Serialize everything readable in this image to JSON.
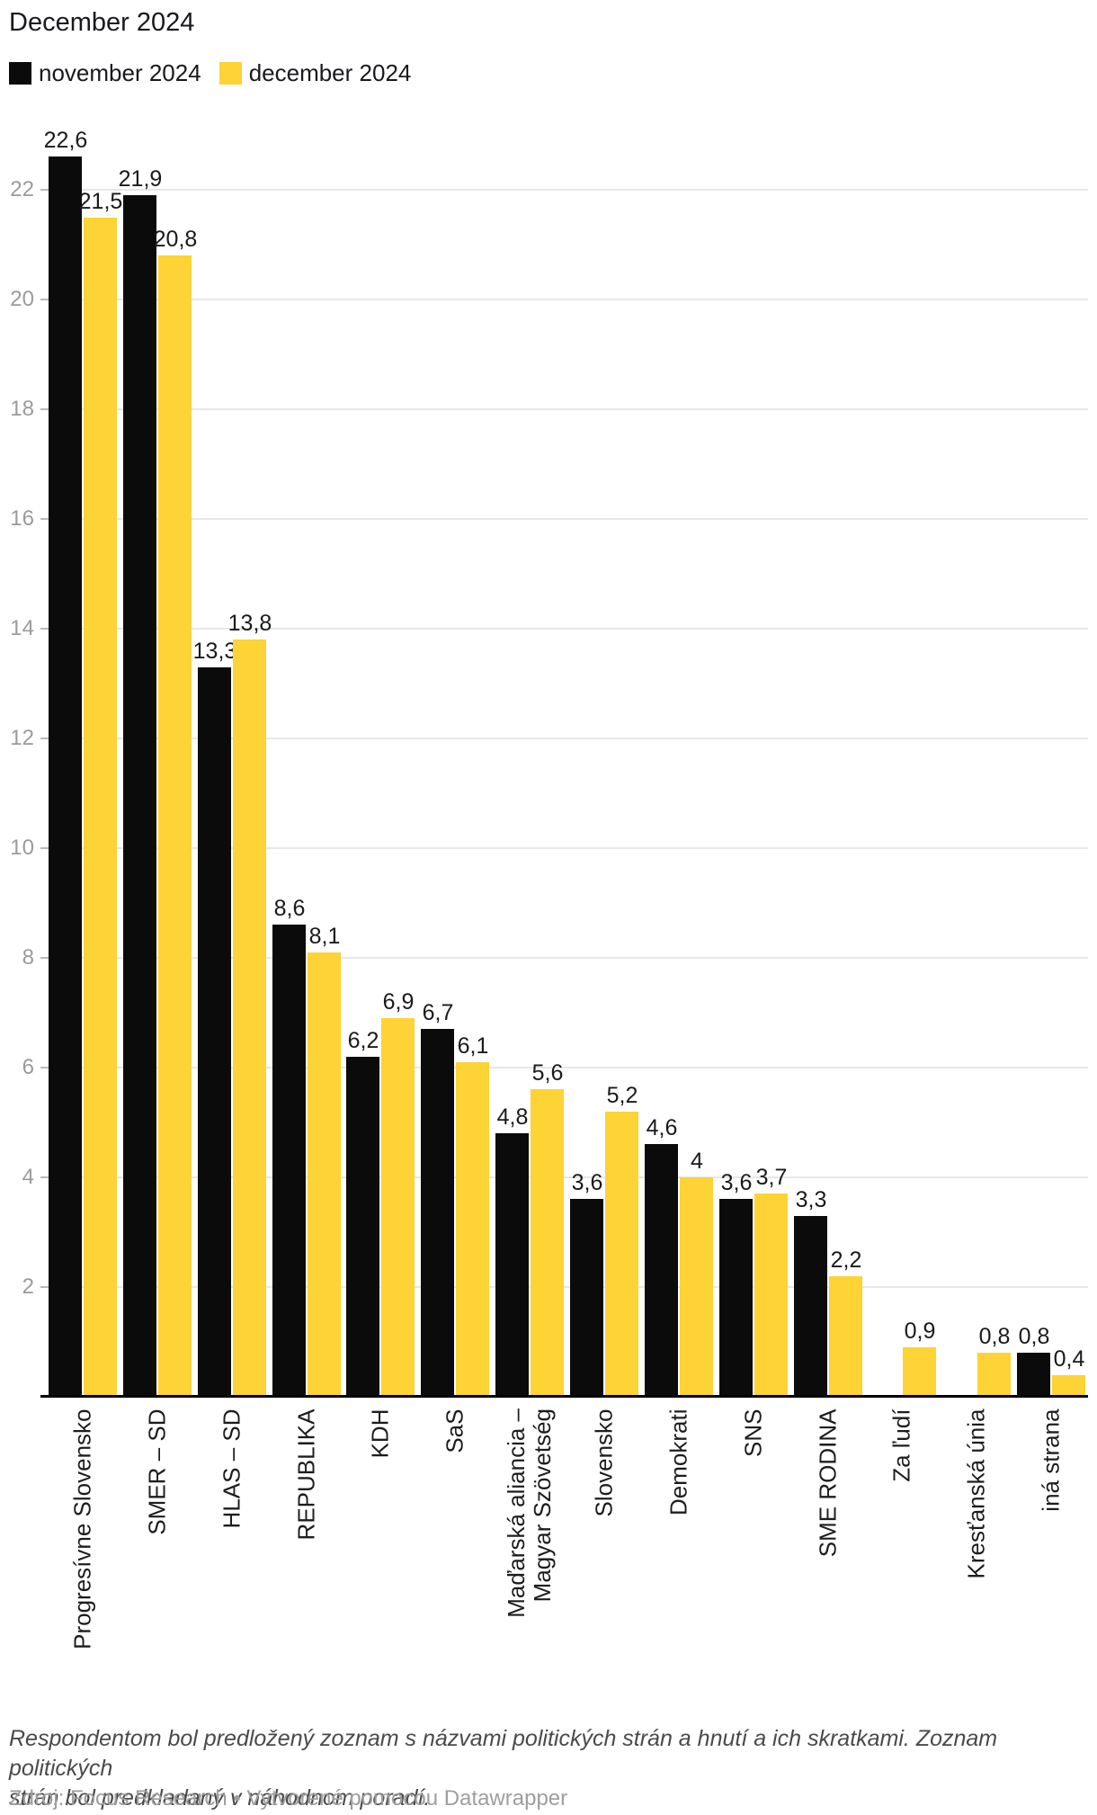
{
  "header": {
    "title": "December 2024"
  },
  "chart_data": {
    "type": "bar",
    "title": "December 2024",
    "categories": [
      "Progresívne Slovensko",
      "SMER – SD",
      "HLAS – SD",
      "REPUBLIKA",
      "KDH",
      "SaS",
      "Maďarská aliancia –\nMagyar Szövetség",
      "Slovensko",
      "Demokrati",
      "SNS",
      "SME RODINA",
      "Za ľudí",
      "Kresťanská únia",
      "iná strana"
    ],
    "series": [
      {
        "name": "november 2024",
        "color": "#0b0b0b",
        "values": [
          22.6,
          21.9,
          13.3,
          8.6,
          6.2,
          6.7,
          4.8,
          3.6,
          4.6,
          3.6,
          3.3,
          null,
          null,
          0.8
        ]
      },
      {
        "name": "december 2024",
        "color": "#fdd335",
        "values": [
          21.5,
          20.8,
          13.8,
          8.1,
          6.9,
          6.1,
          5.6,
          5.2,
          4,
          3.7,
          2.2,
          0.9,
          0.8,
          0.4
        ]
      }
    ],
    "y_ticks": [
      2,
      4,
      6,
      8,
      10,
      12,
      14,
      16,
      18,
      20,
      22
    ],
    "ylim": [
      0,
      23.5
    ],
    "grid": true,
    "legend_position": "top-left",
    "value_label_decimal": "comma",
    "xlabel": "",
    "ylabel": ""
  },
  "footer": {
    "notes_lines": [
      "Respondentom bol predložený zoznam s názvami politických strán a hnutí a ich skratkami. Zoznam politických",
      "strán bol predkladaný v náhodnom poradí."
    ],
    "source": "Zdroj: Focus Research • Vytvorené pomocou Datawrapper"
  }
}
